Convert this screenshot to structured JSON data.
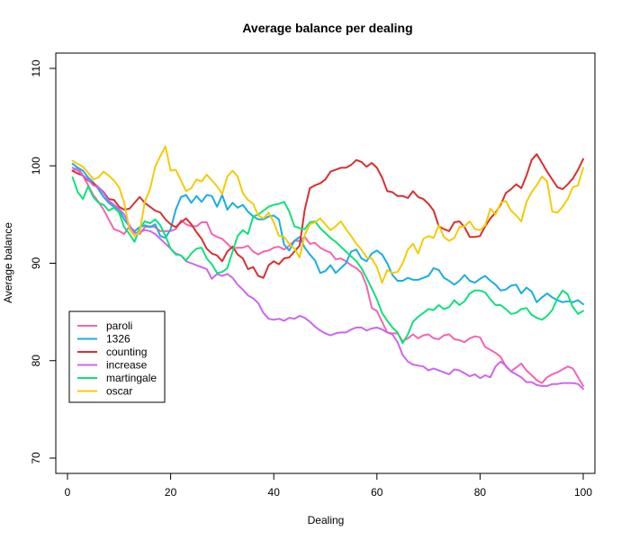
{
  "chart_data": {
    "type": "line",
    "title": "Average balance per dealing",
    "xlabel": "Dealing",
    "ylabel": "Average balance",
    "xlim": [
      0,
      100
    ],
    "ylim": [
      70,
      110
    ],
    "x_ticks": [
      0,
      20,
      40,
      60,
      80,
      100
    ],
    "y_ticks": [
      70,
      80,
      90,
      100,
      110
    ],
    "legend_position": "left",
    "x": [
      1,
      2,
      3,
      4,
      5,
      6,
      7,
      8,
      9,
      10,
      11,
      12,
      13,
      14,
      15,
      16,
      17,
      18,
      19,
      20,
      21,
      22,
      23,
      24,
      25,
      26,
      27,
      28,
      29,
      30,
      31,
      32,
      33,
      34,
      35,
      36,
      37,
      38,
      39,
      40,
      41,
      42,
      43,
      44,
      45,
      46,
      47,
      48,
      49,
      50,
      51,
      52,
      53,
      54,
      55,
      56,
      57,
      58,
      59,
      60,
      61,
      62,
      63,
      64,
      65,
      66,
      67,
      68,
      69,
      70,
      71,
      72,
      73,
      74,
      75,
      76,
      77,
      78,
      79,
      80,
      81,
      82,
      83,
      84,
      85,
      86,
      87,
      88,
      89,
      90,
      91,
      92,
      93,
      94,
      95,
      96,
      97,
      98,
      99,
      100
    ],
    "series": [
      {
        "name": "paroli",
        "color": "#F564B0",
        "values": [
          99.5,
          99.8,
          99.0,
          98.0,
          97.0,
          96.3,
          95.5,
          94.5,
          93.5,
          93.3,
          93.0,
          93.8,
          93.2,
          93.0,
          93.7,
          93.8,
          93.7,
          93.3,
          93.3,
          93.3,
          93.5,
          94.4,
          94.0,
          93.8,
          93.8,
          94.2,
          94.2,
          93.0,
          92.7,
          92.5,
          92.0,
          91.5,
          91.6,
          91.6,
          91.8,
          91.2,
          90.9,
          91.2,
          91.3,
          91.6,
          91.7,
          91.4,
          91.8,
          92.3,
          92.3,
          92.7,
          92.0,
          92.1,
          91.6,
          91.3,
          91.1,
          90.4,
          90.5,
          90.2,
          89.8,
          89.5,
          89.0,
          87.7,
          85.4,
          85.1,
          84.0,
          82.9,
          82.8,
          82.8,
          82.0,
          82.3,
          82.7,
          82.3,
          82.6,
          82.7,
          82.3,
          82.2,
          82.6,
          82.7,
          82.2,
          82.1,
          81.9,
          82.3,
          82.5,
          82.4,
          81.4,
          81.1,
          80.8,
          80.4,
          79.4,
          78.9,
          79.3,
          79.7,
          79.0,
          78.5,
          78.0,
          77.7,
          78.3,
          78.6,
          78.8,
          79.1,
          79.4,
          79.2,
          78.3,
          77.4
        ]
      },
      {
        "name": "1326",
        "color": "#1AAEE0",
        "values": [
          100.2,
          99.8,
          99.5,
          98.8,
          98.3,
          97.6,
          96.8,
          96.2,
          95.8,
          95.5,
          94.5,
          93.8,
          93.3,
          93.7,
          93.9,
          93.7,
          94.0,
          92.8,
          92.6,
          93.5,
          95.5,
          96.8,
          97.0,
          96.2,
          96.9,
          96.3,
          97.0,
          96.9,
          95.8,
          97.0,
          95.5,
          96.2,
          95.7,
          96.0,
          95.3,
          94.8,
          94.5,
          94.5,
          94.8,
          94.9,
          94.5,
          91.9,
          91.3,
          92.3,
          92.7,
          91.6,
          90.9,
          90.3,
          89.0,
          89.2,
          89.8,
          89.0,
          89.5,
          90.0,
          91.2,
          91.4,
          90.5,
          90.2,
          91.0,
          91.3,
          90.9,
          90.0,
          88.8,
          88.2,
          88.2,
          88.5,
          88.3,
          88.3,
          88.5,
          88.7,
          89.5,
          89.3,
          88.5,
          88.2,
          87.8,
          88.2,
          88.8,
          88.2,
          88.0,
          88.4,
          88.7,
          88.2,
          87.8,
          87.2,
          87.3,
          87.7,
          87.8,
          86.9,
          87.5,
          87.1,
          86.0,
          86.5,
          86.9,
          86.5,
          86.2,
          86.0,
          86.1,
          86.0,
          86.2,
          85.8
        ]
      },
      {
        "name": "counting",
        "color": "#D73030",
        "values": [
          99.5,
          99.2,
          99.0,
          98.5,
          98.2,
          97.8,
          97.3,
          96.6,
          96.5,
          95.8,
          95.5,
          95.6,
          96.2,
          96.8,
          96.2,
          95.8,
          95.4,
          95.2,
          94.5,
          94.0,
          93.7,
          94.2,
          94.6,
          94.0,
          93.2,
          92.5,
          91.5,
          91.0,
          90.8,
          90.2,
          91.2,
          91.7,
          90.9,
          90.5,
          89.4,
          89.6,
          88.7,
          88.5,
          89.8,
          90.2,
          89.9,
          90.5,
          90.6,
          91.2,
          91.8,
          95.5,
          97.7,
          98.0,
          98.2,
          98.6,
          99.4,
          99.6,
          99.8,
          99.8,
          100.1,
          100.6,
          100.4,
          99.9,
          100.3,
          99.8,
          98.8,
          97.4,
          97.3,
          96.9,
          96.9,
          96.7,
          97.4,
          96.8,
          96.6,
          96.1,
          95.4,
          93.8,
          93.5,
          93.3,
          94.2,
          94.3,
          93.7,
          92.7,
          92.7,
          92.8,
          93.8,
          94.6,
          95.2,
          96.0,
          97.2,
          97.6,
          98.1,
          97.7,
          99.0,
          100.6,
          101.2,
          100.3,
          99.4,
          98.6,
          97.8,
          97.6,
          98.1,
          98.7,
          99.6,
          100.7
        ]
      },
      {
        "name": "increase",
        "color": "#CC66EE",
        "values": [
          99.8,
          99.5,
          99.0,
          98.6,
          98.0,
          97.8,
          97.2,
          96.4,
          96.0,
          95.6,
          95.0,
          93.9,
          93.1,
          93.2,
          93.4,
          93.3,
          93.0,
          92.5,
          92.0,
          91.5,
          91.0,
          90.8,
          90.2,
          90.0,
          89.8,
          89.6,
          89.4,
          88.4,
          88.9,
          88.7,
          88.9,
          88.5,
          87.8,
          87.3,
          86.7,
          86.4,
          85.9,
          84.9,
          84.3,
          84.2,
          84.3,
          84.1,
          84.4,
          84.3,
          84.6,
          84.4,
          84.0,
          83.5,
          83.1,
          82.8,
          82.6,
          82.8,
          82.9,
          82.9,
          83.2,
          83.4,
          83.4,
          83.1,
          83.3,
          83.4,
          83.2,
          82.9,
          82.7,
          81.9,
          80.6,
          79.9,
          79.6,
          79.5,
          79.4,
          79.0,
          79.2,
          79.0,
          78.8,
          78.6,
          79.1,
          79.0,
          78.7,
          78.4,
          78.6,
          78.2,
          78.5,
          78.3,
          79.4,
          79.9,
          79.5,
          78.9,
          78.6,
          78.3,
          77.8,
          77.8,
          77.5,
          77.4,
          77.4,
          77.6,
          77.6,
          77.7,
          77.7,
          77.7,
          77.6,
          77.1
        ]
      },
      {
        "name": "martingale",
        "color": "#12E07A",
        "values": [
          98.8,
          97.3,
          96.6,
          97.9,
          96.8,
          96.2,
          96.0,
          95.4,
          95.7,
          95.2,
          93.7,
          93.0,
          92.2,
          93.6,
          94.3,
          94.1,
          94.5,
          93.9,
          92.8,
          91.5,
          90.9,
          90.8,
          90.3,
          91.0,
          91.5,
          91.6,
          90.5,
          89.9,
          89.0,
          89.1,
          89.5,
          91.2,
          92.8,
          93.4,
          93.0,
          94.8,
          95.0,
          95.4,
          95.8,
          96.0,
          96.1,
          96.3,
          95.3,
          93.8,
          93.6,
          93.5,
          94.2,
          94.3,
          93.6,
          93.1,
          92.6,
          92.2,
          91.7,
          91.2,
          90.7,
          90.2,
          89.5,
          88.5,
          87.4,
          86.3,
          84.9,
          84.1,
          83.4,
          82.9,
          81.8,
          82.7,
          84.0,
          84.5,
          84.9,
          85.3,
          85.2,
          85.7,
          85.3,
          85.5,
          86.2,
          85.7,
          86.1,
          86.9,
          87.2,
          87.2,
          87.0,
          86.3,
          85.7,
          85.7,
          85.3,
          84.8,
          84.9,
          85.3,
          85.4,
          84.7,
          84.4,
          84.2,
          84.6,
          85.2,
          86.4,
          87.2,
          86.8,
          85.5,
          84.8,
          85.1
        ]
      },
      {
        "name": "oscar",
        "color": "#F2CC0A",
        "values": [
          100.5,
          100.2,
          99.9,
          99.3,
          98.6,
          98.8,
          99.4,
          99.0,
          98.5,
          97.8,
          96.2,
          93.5,
          92.8,
          93.2,
          96.3,
          97.6,
          99.9,
          101.0,
          102.0,
          99.5,
          99.6,
          98.5,
          97.4,
          97.7,
          98.6,
          98.4,
          99.1,
          98.5,
          97.9,
          97.1,
          98.9,
          99.5,
          98.9,
          97.2,
          96.5,
          96.1,
          94.9,
          94.6,
          95.2,
          94.2,
          92.8,
          92.7,
          92.0,
          91.5,
          90.6,
          92.9,
          94.0,
          94.2,
          94.6,
          94.0,
          93.4,
          93.8,
          94.3,
          93.5,
          92.8,
          92.0,
          91.4,
          90.6,
          90.5,
          89.6,
          88.0,
          89.3,
          89.0,
          89.1,
          90.0,
          91.4,
          92.0,
          91.0,
          92.5,
          92.8,
          92.6,
          93.9,
          92.7,
          92.3,
          92.6,
          93.7,
          93.8,
          94.3,
          93.5,
          93.4,
          93.9,
          95.6,
          95.0,
          96.2,
          96.4,
          95.4,
          94.9,
          94.3,
          96.3,
          97.3,
          98.0,
          98.9,
          98.4,
          95.3,
          95.2,
          95.8,
          96.6,
          97.8,
          98.0,
          99.8
        ]
      }
    ]
  }
}
